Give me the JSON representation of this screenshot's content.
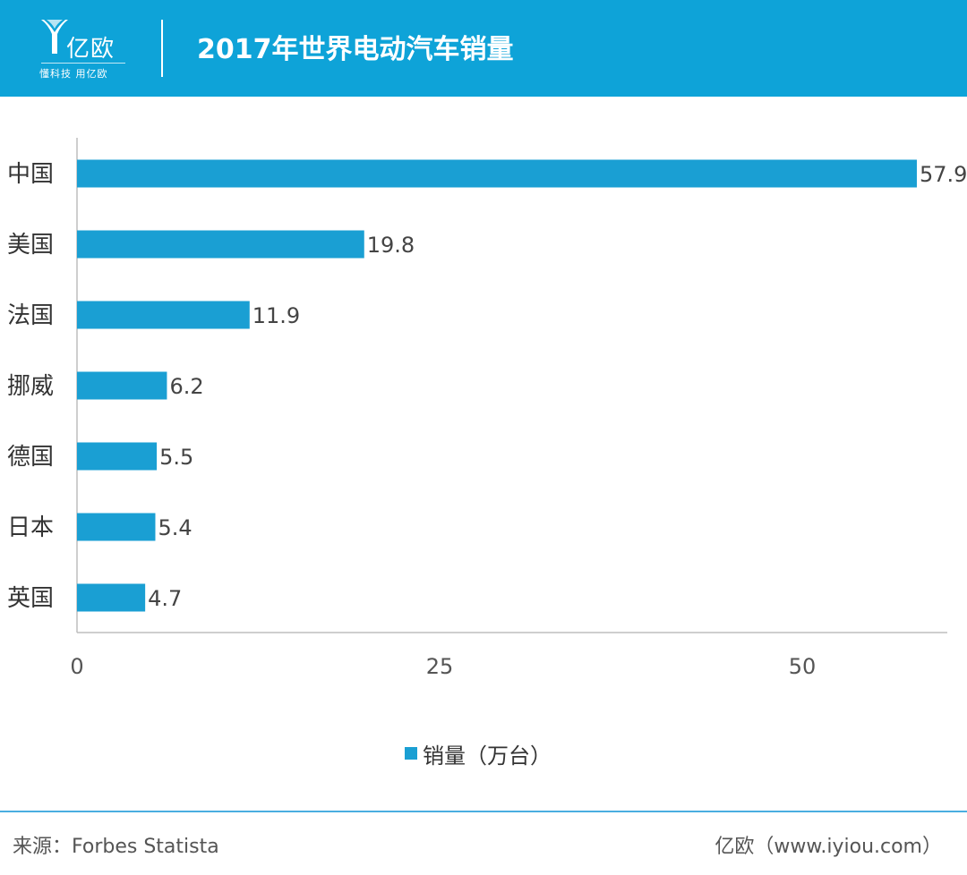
{
  "header": {
    "logo_text": "亿欧",
    "logo_slogan": "懂科技 用亿欧",
    "title": "2017年世界电动汽车销量"
  },
  "chart_data": {
    "type": "bar",
    "orientation": "horizontal",
    "categories": [
      "中国",
      "美国",
      "法国",
      "挪威",
      "德国",
      "日本",
      "英国"
    ],
    "series": [
      {
        "name": "销量（万台）",
        "values": [
          57.9,
          19.8,
          11.9,
          6.2,
          5.5,
          5.4,
          4.7
        ]
      }
    ],
    "title": "2017年世界电动汽车销量",
    "xlim": [
      0,
      60
    ],
    "xticks": [
      0,
      25,
      50
    ],
    "legend_position": "bottom",
    "grid": false,
    "bar_color": "#1a9fd3"
  },
  "footer": {
    "source": "来源：Forbes Statista",
    "brand": "亿欧（www.iyiou.com）"
  }
}
